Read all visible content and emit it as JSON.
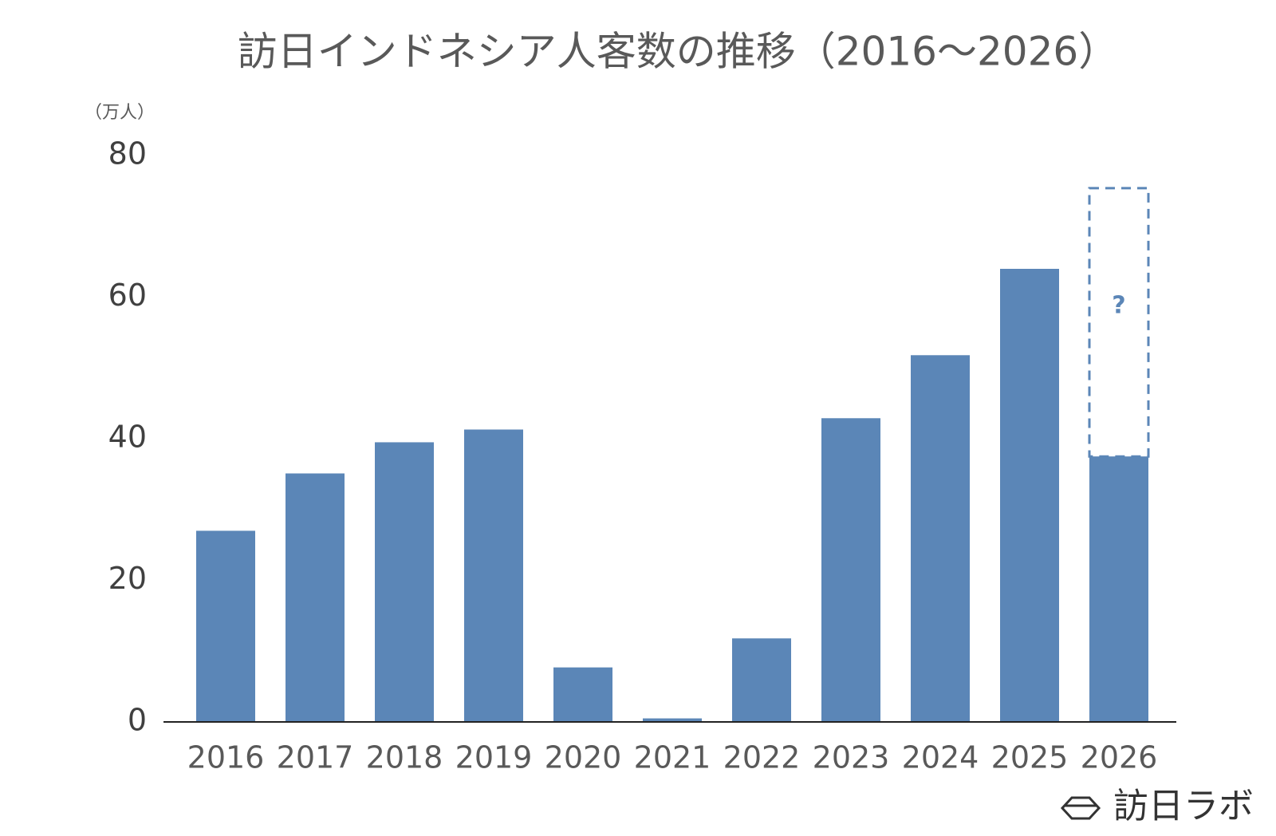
{
  "chart_data": {
    "type": "bar",
    "title": "訪日インドネシア人客数の推移（2016～2026）",
    "y_axis_label": "（万人）",
    "categories": [
      "2016",
      "2017",
      "2018",
      "2019",
      "2020",
      "2021",
      "2022",
      "2023",
      "2024",
      "2025",
      "2026"
    ],
    "series": [
      {
        "color": "#5b86b7",
        "values": [
          27.0,
          35.1,
          39.5,
          41.3,
          7.7,
          0.5,
          11.8,
          42.9,
          51.8,
          64.0,
          37.5
        ]
      },
      {
        "color": "#5b86b7",
        "style": "dashed",
        "values": [
          null,
          null,
          null,
          null,
          null,
          null,
          null,
          null,
          null,
          null,
          37.9
        ]
      }
    ],
    "annotation": "?",
    "ylim": [
      0,
      80
    ],
    "yticks": [
      0,
      20,
      40,
      60,
      80
    ],
    "grid": false,
    "logo": "訪日ラボ"
  }
}
